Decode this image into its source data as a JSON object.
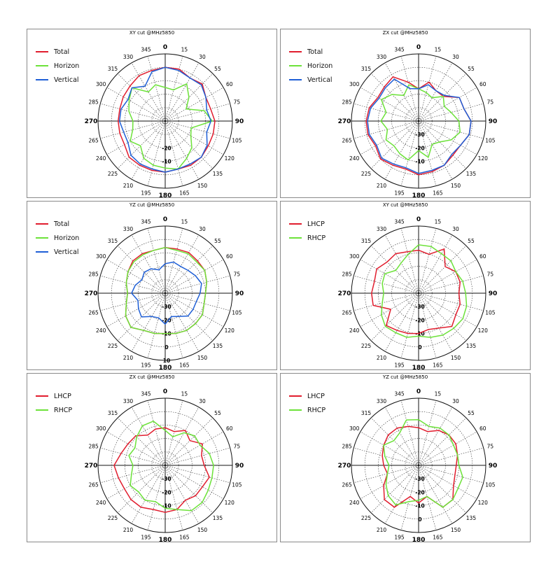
{
  "colors": {
    "Total": "#e11d2e",
    "Horizon": "#6de23a",
    "Vertical": "#1f5fd6",
    "LHCP": "#e11d2e",
    "RHCP": "#6de23a"
  },
  "chart_data": [
    {
      "type": "line",
      "subtype": "polar",
      "title": "XY cut @MHz5850",
      "angle_labels": [
        "0",
        "15",
        "30",
        "55",
        "60",
        "75",
        "90",
        "105",
        "120",
        "135",
        "150",
        "165",
        "180",
        "195",
        "210",
        "225",
        "240",
        "265",
        "270",
        "285",
        "300",
        "315",
        "330",
        "345"
      ],
      "bold_angle_labels": [
        "0",
        "90",
        "180",
        "270"
      ],
      "radial_labels": [
        "-20",
        "-10"
      ],
      "radial_range": [
        -40,
        10
      ],
      "legend": "top-left",
      "series": [
        {
          "name": "Total",
          "values": [
            0,
            0,
            -3,
            -1,
            -5,
            -5,
            -3,
            -3,
            -3,
            -2,
            -2,
            -3,
            -2,
            -2,
            -2,
            -2,
            -5,
            -5,
            -5,
            -5,
            -4,
            -3,
            -1,
            -1
          ]
        },
        {
          "name": "Horizon",
          "values": [
            -15,
            -16,
            -8,
            -15,
            -22,
            -10,
            -5,
            -20,
            -18,
            -12,
            -8,
            -3,
            -5,
            -6,
            -8,
            -14,
            -10,
            -15,
            -16,
            -12,
            -9,
            -5,
            -15,
            -12
          ]
        },
        {
          "name": "Vertical",
          "values": [
            0,
            -1,
            -3,
            -2,
            -5,
            -8,
            -6,
            -8,
            -4,
            -2,
            -3,
            -3,
            -2,
            -3,
            -3,
            -4,
            -8,
            -8,
            -6,
            -6,
            -8,
            -5,
            -10,
            -2
          ]
        }
      ]
    },
    {
      "type": "line",
      "subtype": "polar",
      "title": "ZX cut @MHz5850",
      "angle_labels": [
        "0",
        "15",
        "30",
        "55",
        "60",
        "75",
        "90",
        "105",
        "120",
        "135",
        "150",
        "165",
        "180",
        "195",
        "210",
        "225",
        "240",
        "265",
        "270",
        "285",
        "300",
        "315",
        "330",
        "345"
      ],
      "bold_angle_labels": [
        "0",
        "90",
        "180",
        "270"
      ],
      "radial_labels": [
        "-30",
        "-20",
        "-10"
      ],
      "radial_range": [
        -40,
        10
      ],
      "legend": "top-left",
      "series": [
        {
          "name": "Total",
          "values": [
            -16,
            -10,
            -14,
            -14,
            -5,
            -5,
            -1,
            -1,
            -4,
            -4,
            -2,
            -1,
            0,
            -3,
            -2,
            0,
            -3,
            -1,
            -1,
            -2,
            -5,
            -4,
            -2,
            -10
          ]
        },
        {
          "name": "Horizon",
          "values": [
            -16,
            -18,
            -20,
            -14,
            -18,
            -15,
            -10,
            -8,
            -12,
            -18,
            -20,
            -12,
            -18,
            -10,
            -12,
            -14,
            -12,
            -16,
            -12,
            -15,
            -8,
            -12,
            -18,
            -12
          ]
        },
        {
          "name": "Vertical",
          "values": [
            -16,
            -12,
            -14,
            -13,
            -5,
            -5,
            -1,
            -1,
            -4,
            -5,
            -2,
            -2,
            -1,
            -4,
            -3,
            -1,
            -4,
            -2,
            -2,
            -3,
            -6,
            -5,
            -4,
            -15
          ]
        }
      ]
    },
    {
      "type": "line",
      "subtype": "polar",
      "title": "YZ cut @MHz5850",
      "angle_labels": [
        "0",
        "15",
        "30",
        "55",
        "60",
        "75",
        "90",
        "105",
        "120",
        "135",
        "150",
        "165",
        "180",
        "195",
        "210",
        "225",
        "240",
        "265",
        "270",
        "285",
        "300",
        "315",
        "330",
        "345"
      ],
      "bold_angle_labels": [
        "0",
        "90",
        "180",
        "270"
      ],
      "radial_labels": [
        "-30",
        "-20",
        "-10",
        "0",
        "10"
      ],
      "radial_range": [
        -40,
        10
      ],
      "legend": "top-left",
      "series": [
        {
          "name": "Total",
          "values": [
            -6,
            -6,
            -5,
            -6,
            -6,
            -8,
            -10,
            -10,
            -8,
            -8,
            -8,
            -9,
            -10,
            -9,
            -8,
            -4,
            -6,
            -10,
            -12,
            -10,
            -8,
            -6,
            -6,
            -7
          ]
        },
        {
          "name": "Horizon",
          "values": [
            -6,
            -7,
            -6,
            -7,
            -6,
            -8,
            -10,
            -10,
            -8,
            -8,
            -8,
            -9,
            -10,
            -9,
            -8,
            -4,
            -6,
            -10,
            -12,
            -10,
            -8,
            -7,
            -7,
            -7
          ]
        },
        {
          "name": "Vertical",
          "values": [
            -18,
            -16,
            -17,
            -16,
            -14,
            -12,
            -14,
            -16,
            -16,
            -16,
            -20,
            -22,
            -17,
            -21,
            -20,
            -15,
            -17,
            -19,
            -15,
            -17,
            -20,
            -18,
            -19,
            -22
          ]
        }
      ]
    },
    {
      "type": "line",
      "subtype": "polar",
      "title": "XY cut @MHz5850",
      "angle_labels": [
        "0",
        "15",
        "30",
        "55",
        "60",
        "75",
        "90",
        "105",
        "120",
        "135",
        "150",
        "165",
        "180",
        "195",
        "210",
        "225",
        "240",
        "265",
        "270",
        "285",
        "300",
        "315",
        "330",
        "345"
      ],
      "bold_angle_labels": [
        "0",
        "90",
        "180",
        "270"
      ],
      "radial_labels": [
        "-30",
        "-20",
        "-10",
        "0"
      ],
      "radial_range": [
        -40,
        10
      ],
      "legend": "top-left",
      "series": [
        {
          "name": "LHCP",
          "values": [
            -8,
            -10,
            -2,
            -12,
            -8,
            -8,
            -10,
            -8,
            -8,
            -5,
            -10,
            -12,
            -10,
            -9,
            -8,
            -6,
            -16,
            -5,
            -5,
            -6,
            -4,
            -7,
            -6,
            -8
          ]
        },
        {
          "name": "RHCP",
          "values": [
            -4,
            -4,
            -6,
            -6,
            -8,
            -6,
            -5,
            -3,
            -2,
            -3,
            -4,
            -6,
            -8,
            -6,
            -6,
            -5,
            -8,
            -12,
            -14,
            -12,
            -11,
            -16,
            -14,
            -10
          ]
        }
      ]
    },
    {
      "type": "line",
      "subtype": "polar",
      "title": "ZX cut @MHz5850",
      "angle_labels": [
        "0",
        "15",
        "30",
        "55",
        "60",
        "75",
        "90",
        "105",
        "120",
        "135",
        "150",
        "165",
        "180",
        "195",
        "210",
        "225",
        "240",
        "265",
        "270",
        "285",
        "300",
        "315",
        "330",
        "345"
      ],
      "bold_angle_labels": [
        "0",
        "90",
        "180",
        "270"
      ],
      "radial_labels": [
        "-30",
        "-20",
        "-10"
      ],
      "radial_range": [
        -40,
        10
      ],
      "legend": "top-left",
      "series": [
        {
          "name": "LHCP",
          "values": [
            -12,
            -14,
            -10,
            -14,
            -8,
            -12,
            -11,
            -6,
            -8,
            -8,
            -10,
            -6,
            -5,
            -6,
            -4,
            -4,
            -5,
            -4,
            -2,
            -6,
            -8,
            -9,
            -14,
            -12
          ]
        },
        {
          "name": "RHCP",
          "values": [
            -14,
            -18,
            -12,
            -9,
            -10,
            -6,
            -4,
            -4,
            -3,
            -1,
            -1,
            -6,
            -8,
            -12,
            -10,
            -12,
            -10,
            -14,
            -16,
            -12,
            -14,
            -10,
            -6,
            -6
          ]
        }
      ]
    },
    {
      "type": "line",
      "subtype": "polar",
      "title": "YZ cut @MHz5850",
      "angle_labels": [
        "0",
        "15",
        "30",
        "55",
        "60",
        "75",
        "90",
        "105",
        "120",
        "135",
        "150",
        "165",
        "180",
        "195",
        "210",
        "225",
        "240",
        "265",
        "270",
        "285",
        "300",
        "315",
        "330",
        "345"
      ],
      "bold_angle_labels": [
        "0",
        "90",
        "180",
        "270"
      ],
      "radial_labels": [
        "-30",
        "-20",
        "-10",
        "0"
      ],
      "radial_range": [
        -40,
        10
      ],
      "legend": "top-left",
      "series": [
        {
          "name": "LHCP",
          "values": [
            -12,
            -14,
            -10,
            -8,
            -8,
            -10,
            -12,
            -12,
            -10,
            -4,
            -4,
            -16,
            -12,
            -16,
            -4,
            -4,
            -10,
            -16,
            -14,
            -12,
            -10,
            -8,
            -8,
            -10
          ]
        },
        {
          "name": "RHCP",
          "values": [
            -6,
            -10,
            -8,
            -8,
            -10,
            -10,
            -10,
            -6,
            -6,
            -4,
            -4,
            -16,
            -14,
            -12,
            -6,
            -8,
            -12,
            -16,
            -18,
            -14,
            -10,
            -14,
            -12,
            -5
          ]
        }
      ]
    }
  ]
}
